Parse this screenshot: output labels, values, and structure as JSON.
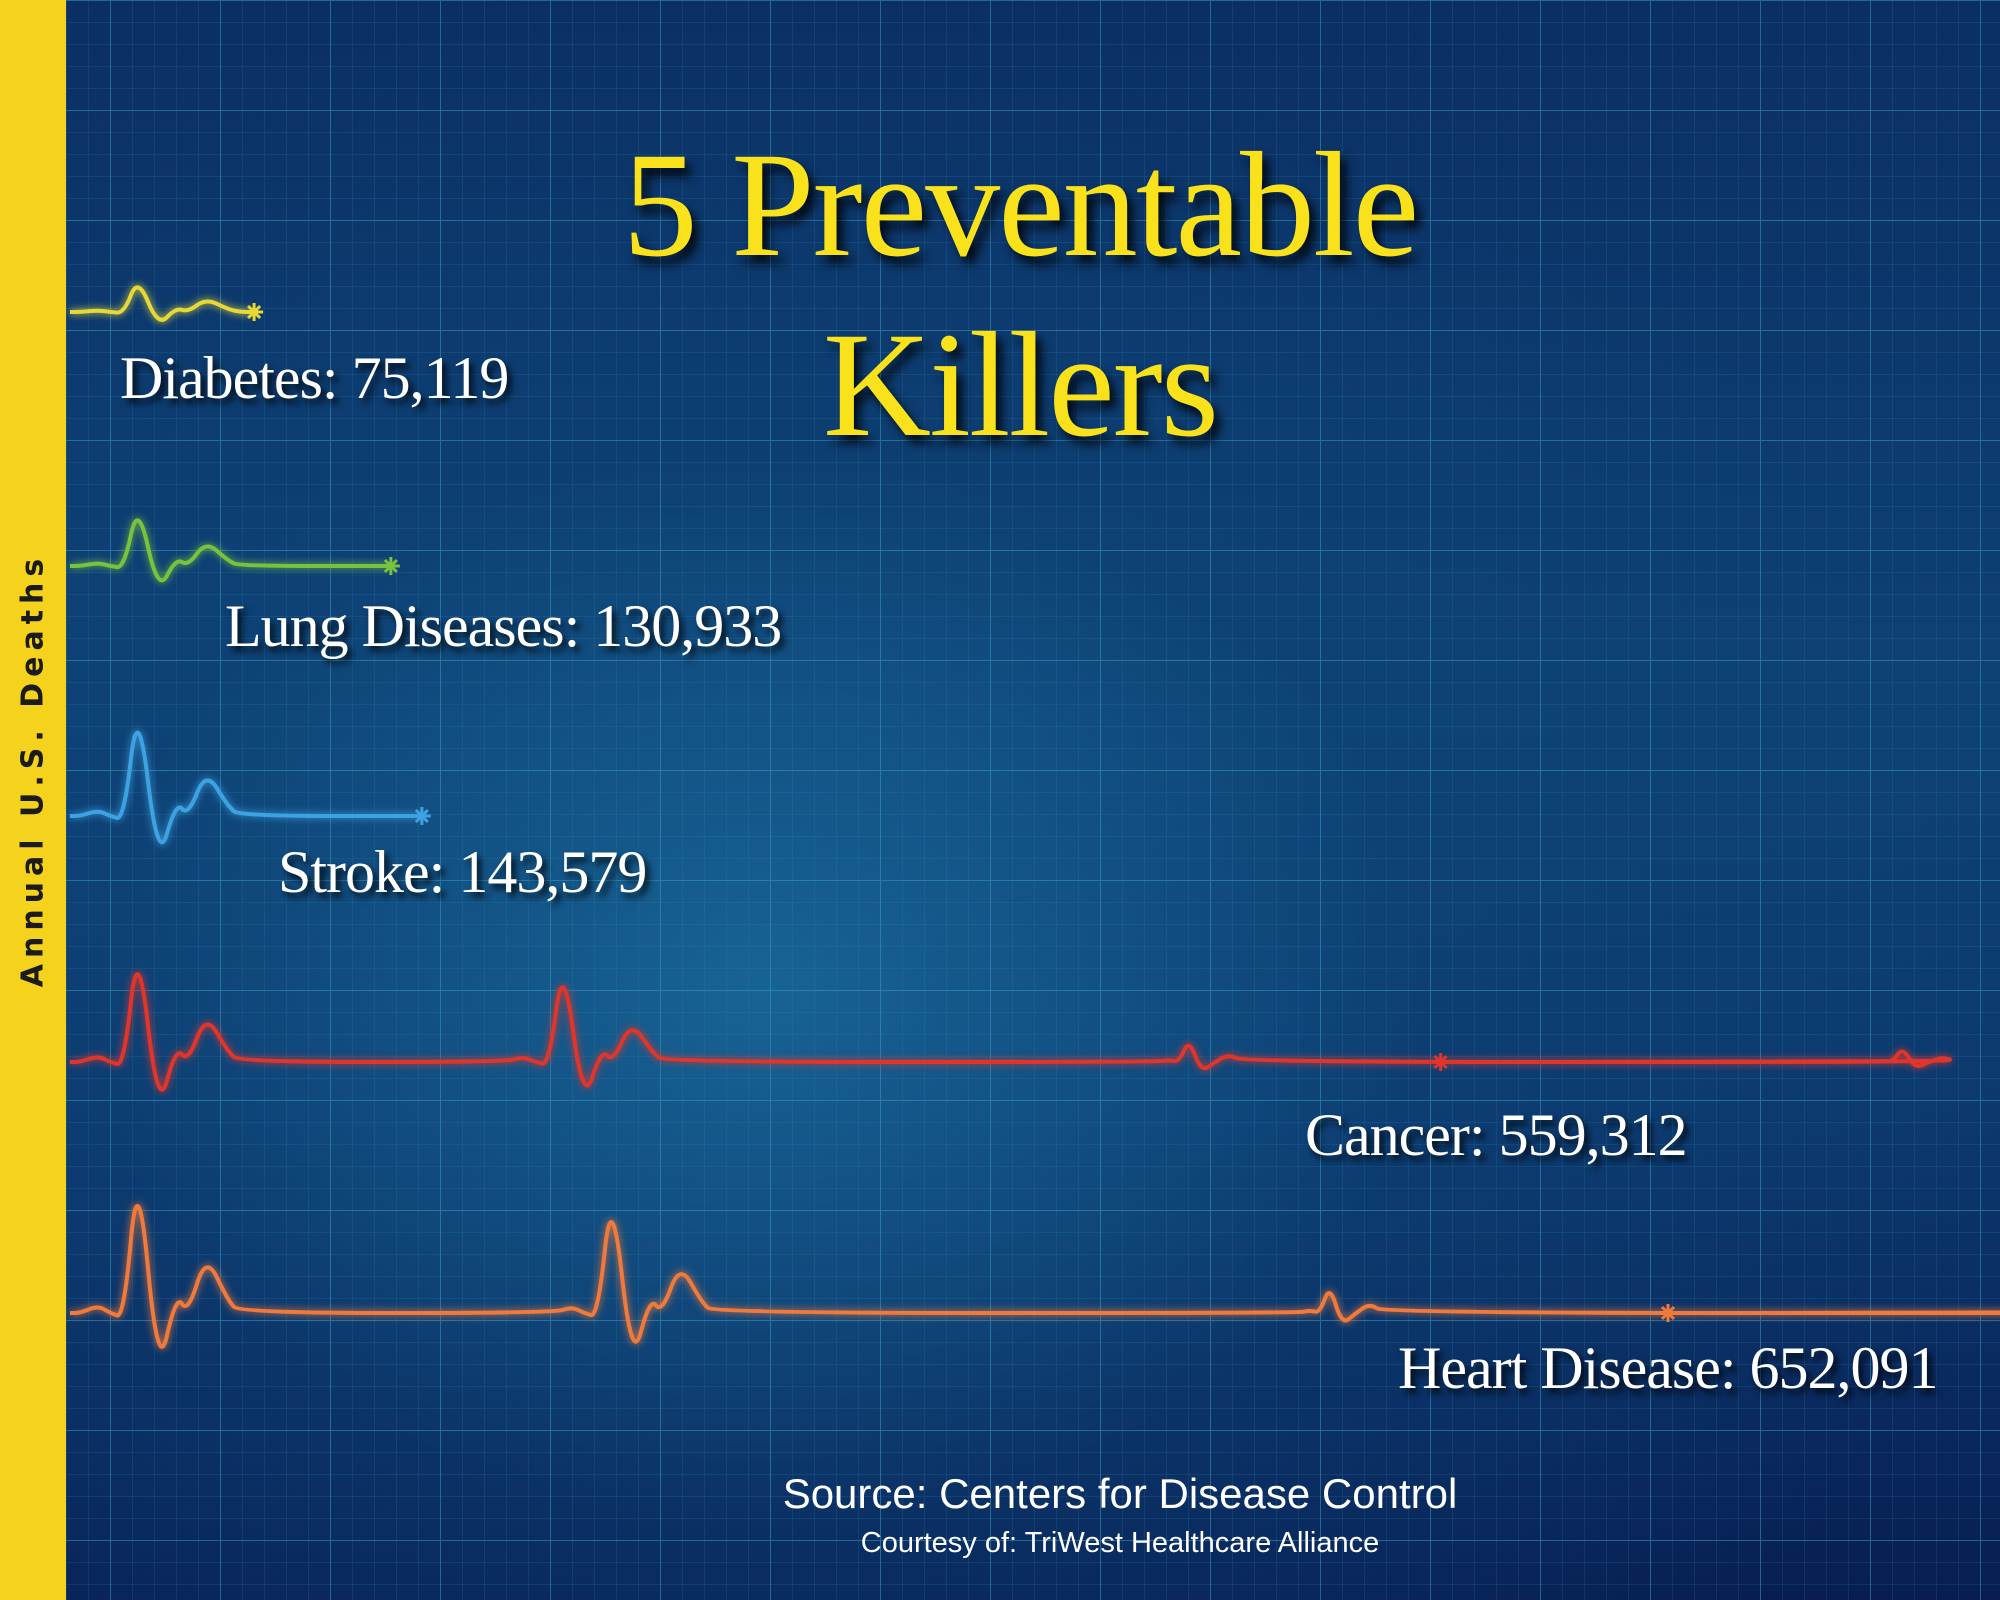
{
  "title_line1": "5 Preventable",
  "title_line2": "Killers",
  "side_label": "Annual U.S. Deaths",
  "source": "Source: Centers for Disease Control",
  "courtesy": "Courtesy of:  TriWest Healthcare Alliance",
  "colors": {
    "background": "#0d2f63",
    "grid": "#2a8fb0",
    "title": "#f9e21b",
    "side_band": "#f5d21c",
    "label": "#ffffff"
  },
  "chart_data": {
    "type": "bar",
    "ylabel": "Annual U.S. Deaths",
    "categories": [
      "Diabetes",
      "Lung Diseases",
      "Stroke",
      "Cancer",
      "Heart Disease"
    ],
    "values": [
      75119,
      130933,
      143579,
      559312,
      652091
    ],
    "value_labels": [
      "75,119",
      "130,933",
      "143,579",
      "559,312",
      "652,091"
    ],
    "colors": [
      "#e8d834",
      "#78c23e",
      "#3ea2e2",
      "#e0352c",
      "#f07a3a"
    ],
    "grid": true
  }
}
